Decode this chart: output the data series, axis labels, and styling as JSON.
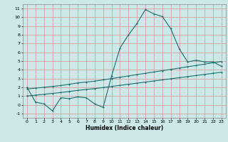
{
  "xlabel": "Humidex (Indice chaleur)",
  "xlim": [
    -0.5,
    23.5
  ],
  "ylim": [
    -1.5,
    11.5
  ],
  "xticks": [
    0,
    1,
    2,
    3,
    4,
    5,
    6,
    7,
    8,
    9,
    10,
    11,
    12,
    13,
    14,
    15,
    16,
    17,
    18,
    19,
    20,
    21,
    22,
    23
  ],
  "yticks": [
    -1,
    0,
    1,
    2,
    3,
    4,
    5,
    6,
    7,
    8,
    9,
    10,
    11
  ],
  "bg_color": "#cce8e8",
  "grid_color": "#d4a0a0",
  "line_color": "#1a7070",
  "curve1_x": [
    0,
    1,
    2,
    3,
    4,
    5,
    6,
    7,
    8,
    9,
    10,
    11,
    12,
    13,
    14,
    15,
    16,
    17,
    18,
    19,
    20,
    21,
    22,
    23
  ],
  "curve1_y": [
    2.0,
    0.3,
    0.1,
    -0.7,
    0.8,
    0.7,
    0.9,
    0.8,
    0.1,
    -0.3,
    3.3,
    6.5,
    8.0,
    9.3,
    10.9,
    10.4,
    10.1,
    8.7,
    6.4,
    4.9,
    5.1,
    4.9,
    4.9,
    4.4
  ],
  "line2_x": [
    0,
    1,
    2,
    3,
    4,
    5,
    6,
    7,
    8,
    9,
    10,
    11,
    12,
    13,
    14,
    15,
    16,
    17,
    18,
    19,
    20,
    21,
    22,
    23
  ],
  "line2_y": [
    1.8,
    1.9,
    2.0,
    2.1,
    2.2,
    2.35,
    2.5,
    2.6,
    2.7,
    2.85,
    3.0,
    3.15,
    3.3,
    3.45,
    3.6,
    3.75,
    3.9,
    4.05,
    4.2,
    4.35,
    4.5,
    4.65,
    4.8,
    4.95
  ],
  "line3_x": [
    0,
    1,
    2,
    3,
    4,
    5,
    6,
    7,
    8,
    9,
    10,
    11,
    12,
    13,
    14,
    15,
    16,
    17,
    18,
    19,
    20,
    21,
    22,
    23
  ],
  "line3_y": [
    1.0,
    1.1,
    1.2,
    1.3,
    1.4,
    1.52,
    1.65,
    1.75,
    1.85,
    1.97,
    2.1,
    2.22,
    2.35,
    2.47,
    2.6,
    2.72,
    2.85,
    2.97,
    3.1,
    3.22,
    3.35,
    3.47,
    3.6,
    3.72
  ]
}
